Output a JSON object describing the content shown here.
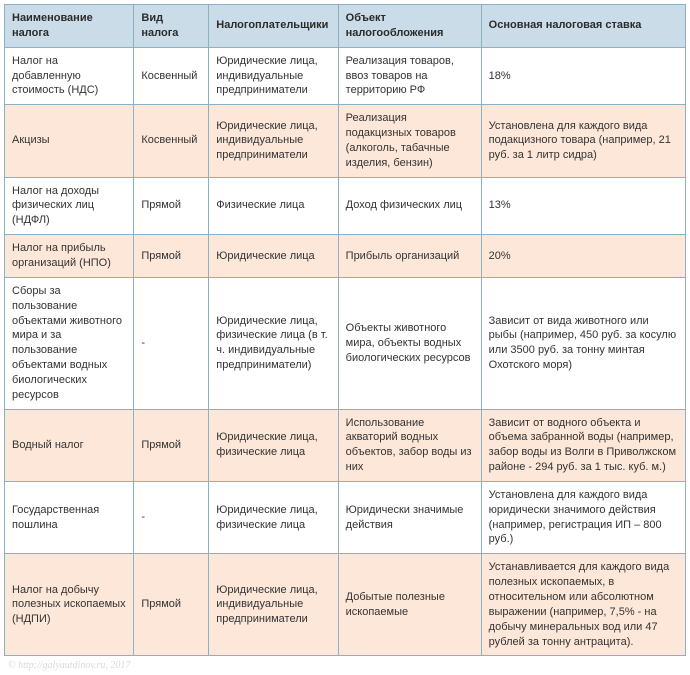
{
  "table": {
    "col_widths": [
      "19%",
      "11%",
      "19%",
      "21%",
      "30%"
    ],
    "header_bg": "#c9dce8",
    "alt_bg": "#fde7d9",
    "plain_bg": "#ffffff",
    "border_color": "#8eb0c4",
    "font_size": 11,
    "columns": [
      "Наименование налога",
      "Вид налога",
      "Налогоплательщики",
      "Объект налогообложения",
      "Основная налоговая ставка"
    ],
    "rows": [
      {
        "alt": false,
        "cells": [
          "Налог на добавленную стоимость (НДС)",
          "Косвенный",
          "Юридические лица, индивидуальные предприниматели",
          "Реализация товаров, ввоз товаров на территорию РФ",
          "18%"
        ]
      },
      {
        "alt": true,
        "cells": [
          "Акцизы",
          "Косвенный",
          "Юридические лица, индивидуальные предприниматели",
          "Реализация подакцизных товаров (алкоголь, табачные изделия, бензин)",
          "Установлена для каждого вида подакцизного товара (например, 21 руб. за 1 литр сидра)"
        ]
      },
      {
        "alt": false,
        "cells": [
          "Налог на доходы физических лиц (НДФЛ)",
          "Прямой",
          "Физические лица",
          "Доход физических лиц",
          "13%"
        ]
      },
      {
        "alt": true,
        "cells": [
          "Налог на прибыль организаций (НПО)",
          "Прямой",
          "Юридические лица",
          "Прибыль организаций",
          "20%"
        ]
      },
      {
        "alt": false,
        "cells": [
          "Сборы за пользование объектами животного мира и за пользование объектами водных биологических ресурсов",
          "-",
          "Юридические лица, физические лица (в т. ч. индивидуальные предприниматели)",
          "Объекты животного мира, объекты водных биологических ресурсов",
          "Зависит от вида животного или рыбы (например, 450 руб. за косулю или 3500 руб. за тонну минтая Охотского моря)"
        ]
      },
      {
        "alt": true,
        "cells": [
          "Водный налог",
          "Прямой",
          "Юридические лица, физические лица",
          "Использование акваторий водных объектов, забор воды из них",
          "Зависит от водного объекта и объема забранной воды (например, забор воды из Волги в Приволжском районе - 294 руб. за 1 тыс. куб. м.)"
        ]
      },
      {
        "alt": false,
        "cells": [
          "Государственная пошлина",
          "-",
          "Юридические лица, физические лица",
          "Юридически значимые действия",
          "Установлена для каждого вида юридически значимого действия (например, регистрация ИП – 800 руб.)"
        ]
      },
      {
        "alt": true,
        "cells": [
          "Налог на добычу полезных ископаемых (НДПИ)",
          "Прямой",
          "Юридические лица, индивидуальные предприниматели",
          "Добытые полезные ископаемые",
          "Устанавливается для каждого вида полезных ископаемых, в относительном или абсолютном выражении (например, 7,5% - на добычу минеральных вод или 47 рублей за тонну антрацита)."
        ]
      }
    ]
  },
  "footer": "© http://galyautdinov.ru, 2017"
}
